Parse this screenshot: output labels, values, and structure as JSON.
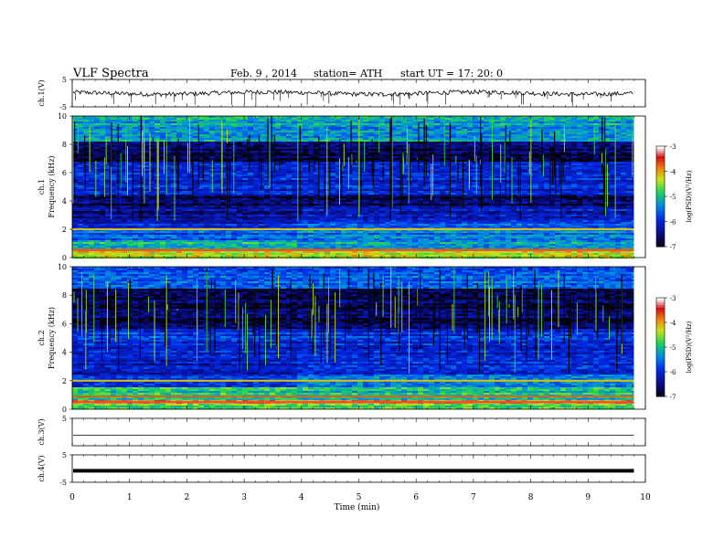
{
  "header": {
    "title": "VLF  Spectra",
    "date": "Feb. 9  , 2014",
    "station": "station= ATH",
    "start": "start  UT  =   17: 20: 0"
  },
  "chart_data": [
    {
      "type": "line",
      "panel": "ch1-waveform",
      "ylabel": "ch.1(V)",
      "ylim": [
        -5,
        5
      ],
      "yticks": [
        "5",
        "-5"
      ],
      "xlim": [
        0,
        10
      ],
      "baseline": 0,
      "trace_color": "#000000"
    },
    {
      "type": "heatmap",
      "panel": "ch1-spectrogram",
      "ylabel": "ch.1\nFrequency (kHz)",
      "ylim": [
        0,
        10
      ],
      "yticks": [
        "0",
        "2",
        "4",
        "6",
        "8",
        "10"
      ],
      "xlim": [
        0,
        10
      ],
      "data_end_min": 9.8,
      "colorbar": {
        "label": "log(PSD)(V²/Hz)",
        "range": [
          -7,
          -3
        ],
        "ticks": [
          "-3",
          "-4",
          "-5",
          "-6",
          "-7"
        ]
      },
      "level_change_min": 3.9,
      "bands_khz": [
        {
          "f0": 0,
          "f1": 0.45,
          "before": -4.4,
          "after": -4.4
        },
        {
          "f0": 0.45,
          "f1": 0.6,
          "before": -3.1,
          "after": -3.1
        },
        {
          "f0": 0.6,
          "f1": 1.2,
          "before": -5.0,
          "after": -5.2
        },
        {
          "f0": 1.2,
          "f1": 2.0,
          "before": -5.6,
          "after": -5.4
        },
        {
          "f0": 2.0,
          "f1": 2.6,
          "before": -6.0,
          "after": -5.6
        },
        {
          "f0": 2.6,
          "f1": 3.6,
          "before": -6.3,
          "after": -6.1
        },
        {
          "f0": 3.6,
          "f1": 4.4,
          "before": -6.6,
          "after": -6.6
        },
        {
          "f0": 4.4,
          "f1": 5.6,
          "before": -6.0,
          "after": -6.0
        },
        {
          "f0": 5.6,
          "f1": 6.8,
          "before": -5.9,
          "after": -5.9
        },
        {
          "f0": 6.8,
          "f1": 8.2,
          "before": -6.7,
          "after": -6.7
        },
        {
          "f0": 8.2,
          "f1": 10.0,
          "before": -5.2,
          "after": -5.2
        }
      ],
      "bright_lines_khz": [
        0.52,
        0.55,
        2.0
      ]
    },
    {
      "type": "heatmap",
      "panel": "ch2-spectrogram",
      "ylabel": "ch.2\nFrequency (kHz)",
      "ylim": [
        0,
        10
      ],
      "yticks": [
        "0",
        "2",
        "4",
        "6",
        "8",
        "10"
      ],
      "xlim": [
        0,
        10
      ],
      "data_end_min": 9.8,
      "colorbar": {
        "label": "log(PSD)(V²/Hz)",
        "range": [
          -7,
          -3
        ],
        "ticks": [
          "-3",
          "-4",
          "-5",
          "-6",
          "-7"
        ]
      },
      "level_change_min": 3.9,
      "bands_khz": [
        {
          "f0": 0,
          "f1": 0.4,
          "before": -4.6,
          "after": -4.6
        },
        {
          "f0": 0.4,
          "f1": 0.6,
          "before": -3.8,
          "after": -3.8
        },
        {
          "f0": 0.6,
          "f1": 1.5,
          "before": -4.9,
          "after": -5.0
        },
        {
          "f0": 1.5,
          "f1": 2.5,
          "before": -5.8,
          "after": -5.3
        },
        {
          "f0": 2.5,
          "f1": 3.6,
          "before": -6.2,
          "after": -6.0
        },
        {
          "f0": 3.6,
          "f1": 4.8,
          "before": -6.0,
          "after": -6.0
        },
        {
          "f0": 4.8,
          "f1": 5.6,
          "before": -5.9,
          "after": -5.9
        },
        {
          "f0": 5.6,
          "f1": 6.8,
          "before": -6.6,
          "after": -6.6
        },
        {
          "f0": 6.8,
          "f1": 8.5,
          "before": -6.7,
          "after": -6.7
        },
        {
          "f0": 8.5,
          "f1": 10.0,
          "before": -5.6,
          "after": -5.6
        }
      ],
      "bright_lines_khz": [
        0.5,
        0.9,
        2.0
      ]
    },
    {
      "type": "line",
      "panel": "ch3-waveform",
      "ylabel": "ch.3(V)",
      "ylim": [
        -5,
        5
      ],
      "yticks": [
        "5"
      ],
      "xlim": [
        0,
        10
      ],
      "baseline": -1.2,
      "trace_color": "#000000"
    },
    {
      "type": "line",
      "panel": "ch4-waveform",
      "ylabel": "ch.4(V)",
      "ylim": [
        -5,
        5
      ],
      "yticks": [
        "5",
        "-5"
      ],
      "xlim": [
        0,
        10
      ],
      "baseline": -0.8,
      "trace_color": "#000000"
    }
  ],
  "xaxis": {
    "label": "Time  (min)",
    "ticks": [
      "0",
      "1",
      "2",
      "3",
      "4",
      "5",
      "6",
      "7",
      "8",
      "9",
      "10"
    ]
  }
}
